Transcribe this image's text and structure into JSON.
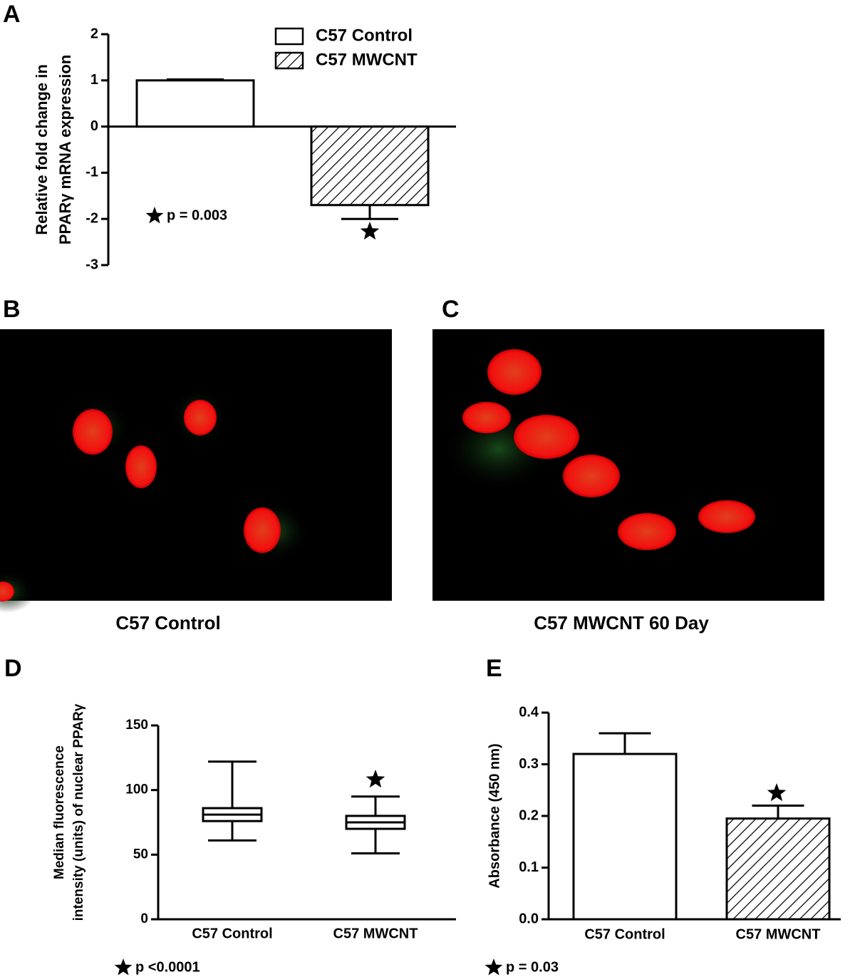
{
  "chart_data": [
    {
      "type": "bar",
      "panel": "A",
      "ylabel": [
        "Relative fold change in",
        "PPARγ mRNA expression"
      ],
      "categories": [
        null
      ],
      "series": [
        {
          "name": "C57 Control",
          "color": "#ffffff",
          "hatch": false,
          "values": [
            1.0
          ],
          "errors": [
            0.02
          ]
        },
        {
          "name": "C57 MWCNT",
          "color": "#ffffff",
          "hatch": true,
          "values": [
            -1.7
          ],
          "errors": [
            0.3
          ]
        }
      ],
      "ylim": [
        -3,
        2
      ],
      "yticks": [
        -3,
        -2,
        -1,
        0,
        1,
        2
      ],
      "annotation": "p = 0.003"
    },
    {
      "type": "box",
      "panel": "D",
      "ylabel": [
        "Median fluorescence",
        "intensity (units) of nuclear PPARγ"
      ],
      "categories": [
        "C57 Control",
        "C57 MWCNT"
      ],
      "stats": [
        {
          "min": 61,
          "q1": 76,
          "median": 81,
          "q3": 86,
          "max": 122
        },
        {
          "min": 51,
          "q1": 70,
          "median": 75,
          "q3": 80,
          "max": 95
        }
      ],
      "ylim": [
        0,
        150
      ],
      "yticks": [
        0,
        50,
        100,
        150
      ],
      "annotation": "p <0.0001"
    },
    {
      "type": "bar",
      "panel": "E",
      "ylabel": [
        "Absorbance (450 nm)"
      ],
      "categories": [
        "C57 Control",
        "C57 MWCNT"
      ],
      "values": [
        0.32,
        0.195
      ],
      "errors": [
        0.04,
        0.025
      ],
      "colors": [
        "#ffffff",
        "#ffffff"
      ],
      "hatch": [
        false,
        true
      ],
      "ylim": [
        0,
        0.4
      ],
      "yticks": [
        {
          "value": 0,
          "label": "0.0"
        },
        0.1,
        0.2,
        0.3,
        0.4
      ],
      "annotation": "p = 0.03"
    }
  ],
  "images": [
    {
      "panel": "B",
      "caption": "C57 Control"
    },
    {
      "panel": "C",
      "caption": "C57 MWCNT 60 Day"
    }
  ]
}
